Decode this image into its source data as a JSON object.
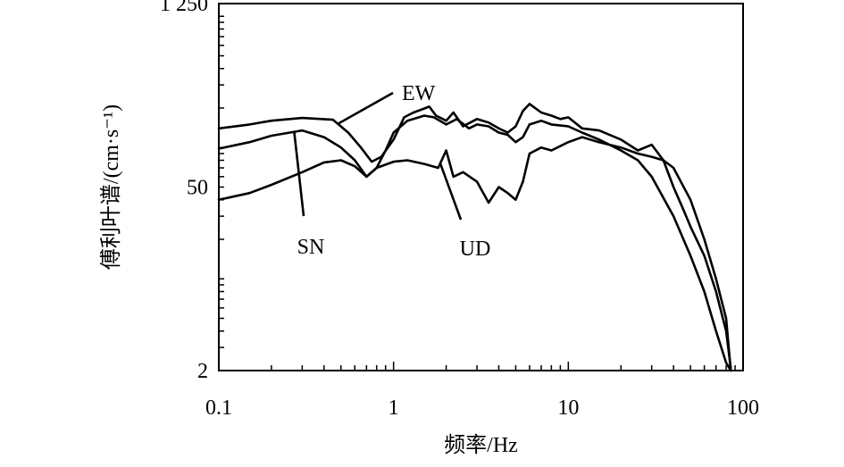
{
  "chart_data": {
    "type": "line",
    "title": "",
    "xlabel": "频率/Hz",
    "ylabel": "傅利叶谱/(cm·s⁻¹)",
    "x_scale": "log",
    "y_scale": "log",
    "xlim": [
      0.1,
      100
    ],
    "ylim": [
      2,
      1250
    ],
    "x_ticks": [
      {
        "value": 0.1,
        "label": "0.1"
      },
      {
        "value": 1,
        "label": "1"
      },
      {
        "value": 10,
        "label": "10"
      },
      {
        "value": 100,
        "label": "100"
      }
    ],
    "y_ticks": [
      {
        "value": 2,
        "label": "2"
      },
      {
        "value": 50,
        "label": "50"
      },
      {
        "value": 1250,
        "label": "1 250"
      }
    ],
    "grid": false,
    "series": [
      {
        "name": "EW",
        "x": [
          0.1,
          0.15,
          0.2,
          0.3,
          0.45,
          0.55,
          0.65,
          0.75,
          0.85,
          1.0,
          1.15,
          1.3,
          1.45,
          1.6,
          1.75,
          2.0,
          2.2,
          2.5,
          3.0,
          3.5,
          4.0,
          4.5,
          5.0,
          5.5,
          6.0,
          7.0,
          8.0,
          9.0,
          10,
          12,
          15,
          20,
          25,
          30,
          35,
          40,
          45,
          50,
          60,
          70,
          80,
          85
        ],
        "y": [
          140,
          150,
          160,
          168,
          163,
          130,
          100,
          78,
          85,
          115,
          170,
          185,
          195,
          205,
          175,
          160,
          185,
          145,
          165,
          155,
          140,
          130,
          145,
          190,
          215,
          185,
          175,
          165,
          170,
          140,
          135,
          115,
          95,
          105,
          80,
          50,
          35,
          25,
          15,
          8,
          4,
          2.1
        ]
      },
      {
        "name": "SN",
        "x": [
          0.1,
          0.15,
          0.2,
          0.3,
          0.4,
          0.5,
          0.6,
          0.7,
          0.8,
          0.9,
          1.0,
          1.2,
          1.5,
          1.7,
          2.0,
          2.3,
          2.7,
          3.0,
          3.5,
          4.0,
          4.5,
          5.0,
          5.5,
          6.0,
          7.0,
          8.0,
          10,
          12,
          15,
          20,
          25,
          30,
          40,
          50,
          60,
          70,
          80,
          85
        ],
        "y": [
          98,
          110,
          123,
          135,
          120,
          100,
          80,
          60,
          70,
          95,
          130,
          160,
          175,
          170,
          150,
          165,
          140,
          150,
          145,
          130,
          125,
          110,
          120,
          150,
          160,
          150,
          145,
          130,
          115,
          95,
          80,
          60,
          30,
          15,
          8,
          4,
          2.3,
          2.0
        ]
      },
      {
        "name": "UD",
        "x": [
          0.1,
          0.15,
          0.2,
          0.3,
          0.4,
          0.5,
          0.6,
          0.7,
          0.8,
          1.0,
          1.2,
          1.5,
          1.8,
          2.0,
          2.2,
          2.5,
          3.0,
          3.5,
          4.0,
          4.5,
          5.0,
          5.5,
          6.0,
          7.0,
          8.0,
          10,
          12,
          15,
          20,
          25,
          30,
          35,
          40,
          50,
          60,
          70,
          80,
          85
        ],
        "y": [
          40,
          45,
          52,
          65,
          77,
          80,
          72,
          60,
          70,
          78,
          80,
          75,
          70,
          95,
          60,
          65,
          55,
          38,
          50,
          45,
          40,
          55,
          90,
          100,
          95,
          110,
          120,
          110,
          100,
          90,
          85,
          80,
          70,
          40,
          20,
          10,
          5,
          2.0
        ]
      }
    ],
    "annotations": [
      {
        "text": "EW",
        "series": "EW"
      },
      {
        "text": "SN",
        "series": "SN"
      },
      {
        "text": "UD",
        "series": "UD"
      }
    ]
  }
}
